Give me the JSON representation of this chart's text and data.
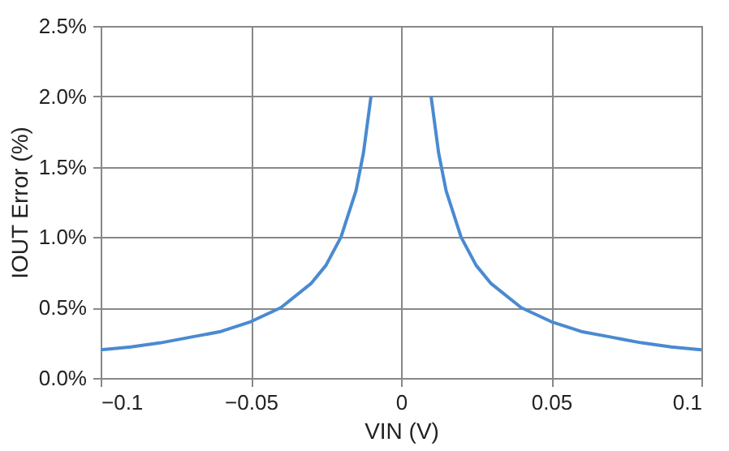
{
  "chart_data": {
    "type": "line",
    "xlabel": "VIN (V)",
    "ylabel": "IOUT Error (%)",
    "x": [
      -0.1,
      -0.09,
      -0.08,
      -0.07,
      -0.06,
      -0.05,
      -0.04,
      -0.03,
      -0.025,
      -0.02,
      -0.015,
      -0.0125,
      -0.01,
      0,
      0.01,
      0.0125,
      0.015,
      0.02,
      0.025,
      0.03,
      0.04,
      0.05,
      0.06,
      0.07,
      0.08,
      0.09,
      0.1
    ],
    "series": [
      {
        "color": "#4a8ad0",
        "values": [
          0.2,
          0.22,
          0.25,
          0.29,
          0.33,
          0.4,
          0.5,
          0.67,
          0.8,
          1.0,
          1.33,
          1.6,
          2.0,
          null,
          2.0,
          1.6,
          1.33,
          1.0,
          0.8,
          0.67,
          0.5,
          0.4,
          0.33,
          0.29,
          0.25,
          0.22,
          0.2
        ]
      }
    ],
    "xlim": [
      -0.1,
      0.1
    ],
    "ylim": [
      0,
      2.5
    ],
    "xticks": [
      {
        "value": -0.1,
        "label": "−0.1"
      },
      {
        "value": -0.05,
        "label": "−0.05"
      },
      0,
      0.05,
      0.1
    ],
    "yticks": [
      {
        "value": 0,
        "label": "0.0%"
      },
      {
        "value": 0.5,
        "label": "0.5%"
      },
      {
        "value": 1,
        "label": "1.0%"
      },
      {
        "value": 1.5,
        "label": "1.5%"
      },
      {
        "value": 2,
        "label": "2.0%"
      },
      {
        "value": 2.5,
        "label": "2.5%"
      }
    ],
    "grid": true,
    "marker": "none",
    "line_style": "solid"
  }
}
